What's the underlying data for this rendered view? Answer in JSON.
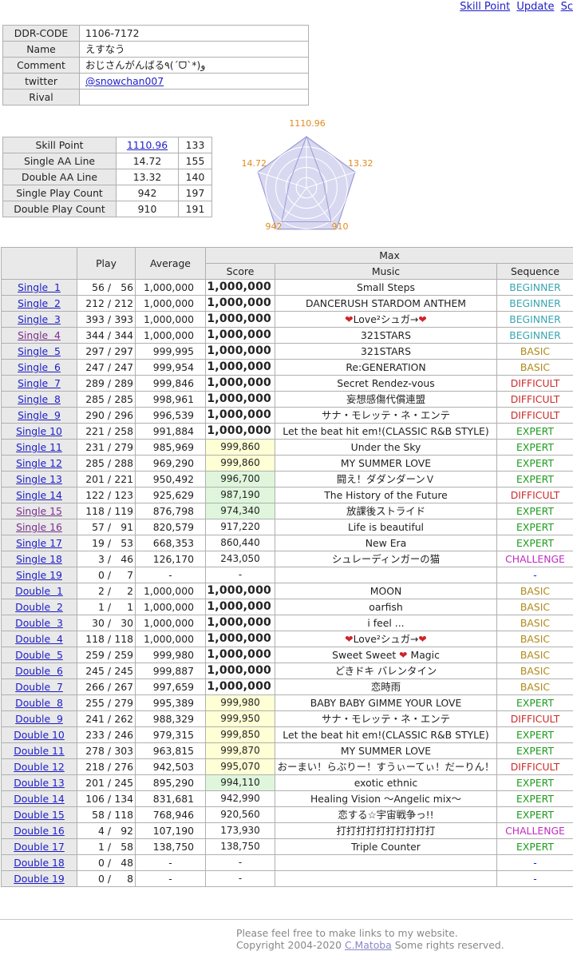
{
  "nav": {
    "skill_point": "Skill Point",
    "update": "Update",
    "extra": "Sc"
  },
  "profile": {
    "code_label": "DDR-CODE",
    "code": "1106-7172",
    "name_label": "Name",
    "name": "えすなう",
    "comment_label": "Comment",
    "comment": "おじさんがんばる٩(ˊᗜˋ*)و",
    "twitter_label": "twitter",
    "twitter": "@snowchan007",
    "rival_label": "Rival",
    "rival": ""
  },
  "skill": [
    {
      "label": "Skill Point",
      "value": "1110.96",
      "rank": "133",
      "link": true
    },
    {
      "label": "Single AA Line",
      "value": "14.72",
      "rank": "155"
    },
    {
      "label": "Double AA Line",
      "value": "13.32",
      "rank": "140"
    },
    {
      "label": "Single Play Count",
      "value": "942",
      "rank": "197"
    },
    {
      "label": "Double Play Count",
      "value": "910",
      "rank": "191"
    }
  ],
  "radar": {
    "values": [
      1110.96,
      13.32,
      910,
      942,
      14.72
    ],
    "labels": [
      "1110.96",
      "13.32",
      "910",
      "942",
      "14.72"
    ],
    "scale": [
      1,
      0.35,
      0.82,
      0.82,
      0.35
    ],
    "label_color": "#e08a1e",
    "fill": "#d8d8f0",
    "line": "#9a9ad8"
  },
  "colors": {
    "BEGINNER": "#3aa6b0",
    "BASIC": "#b08a18",
    "DIFFICULT": "#cc2a2a",
    "EXPERT": "#1d9a1d",
    "CHALLENGE": "#c02cc0",
    "-": "#1d1dc8"
  },
  "headers": {
    "play": "Play",
    "average": "Average",
    "max": "Max",
    "score": "Score",
    "music": "Music",
    "sequence": "Sequence"
  },
  "rows": [
    [
      "Single  1",
      "56",
      "56",
      "1,000,000",
      "1,000,000",
      "Small Steps",
      "BEGINNER"
    ],
    [
      "Single  2",
      "212",
      "212",
      "1,000,000",
      "1,000,000",
      "DANCERUSH STARDOM ANTHEM",
      "BEGINNER"
    ],
    [
      "Single  3",
      "393",
      "393",
      "1,000,000",
      "1,000,000",
      "❤️Love²シュガ→❤️",
      "BEGINNER"
    ],
    [
      "Single  4",
      "344",
      "344",
      "1,000,000",
      "1,000,000",
      "321STARS",
      "BEGINNER"
    ],
    [
      "Single  5",
      "297",
      "297",
      "999,995",
      "1,000,000",
      "321STARS",
      "BASIC"
    ],
    [
      "Single  6",
      "247",
      "247",
      "999,954",
      "1,000,000",
      "Re:GENERATION",
      "BASIC"
    ],
    [
      "Single  7",
      "289",
      "289",
      "999,846",
      "1,000,000",
      "Secret Rendez-vous",
      "DIFFICULT"
    ],
    [
      "Single  8",
      "285",
      "285",
      "998,961",
      "1,000,000",
      "妄想感傷代償連盟",
      "DIFFICULT"
    ],
    [
      "Single  9",
      "290",
      "296",
      "996,539",
      "1,000,000",
      "サナ・モレッテ・ネ・エンテ",
      "DIFFICULT"
    ],
    [
      "Single 10",
      "221",
      "258",
      "991,884",
      "1,000,000",
      "Let the beat hit em!(CLASSIC R&B STYLE)",
      "EXPERT"
    ],
    [
      "Single 11",
      "231",
      "279",
      "985,969",
      "999,860",
      "Under the Sky",
      "EXPERT"
    ],
    [
      "Single 12",
      "285",
      "288",
      "969,290",
      "999,860",
      "MY SUMMER LOVE",
      "EXPERT"
    ],
    [
      "Single 13",
      "201",
      "221",
      "950,492",
      "996,700",
      "闘え！ダダンダーンＶ",
      "EXPERT"
    ],
    [
      "Single 14",
      "122",
      "123",
      "925,629",
      "987,190",
      "The History of the Future",
      "DIFFICULT"
    ],
    [
      "Single 15",
      "118",
      "119",
      "876,798",
      "974,340",
      "放課後ストライド",
      "EXPERT"
    ],
    [
      "Single 16",
      "57",
      "91",
      "820,579",
      "917,220",
      "Life is beautiful",
      "EXPERT"
    ],
    [
      "Single 17",
      "19",
      "53",
      "668,353",
      "860,440",
      "New Era",
      "EXPERT"
    ],
    [
      "Single 18",
      "3",
      "46",
      "126,170",
      "243,050",
      "シュレーディンガーの猫",
      "CHALLENGE"
    ],
    [
      "Single 19",
      "0",
      "7",
      "-",
      "-",
      "",
      "-"
    ],
    [
      "Double  1",
      "2",
      "2",
      "1,000,000",
      "1,000,000",
      "MOON",
      "BASIC"
    ],
    [
      "Double  2",
      "1",
      "1",
      "1,000,000",
      "1,000,000",
      "oarfish",
      "BASIC"
    ],
    [
      "Double  3",
      "30",
      "30",
      "1,000,000",
      "1,000,000",
      "i feel ...",
      "BASIC"
    ],
    [
      "Double  4",
      "118",
      "118",
      "1,000,000",
      "1,000,000",
      "❤️Love²シュガ→❤️",
      "BASIC"
    ],
    [
      "Double  5",
      "259",
      "259",
      "999,980",
      "1,000,000",
      "Sweet Sweet ❤️ Magic",
      "BASIC"
    ],
    [
      "Double  6",
      "245",
      "245",
      "999,887",
      "1,000,000",
      "どきドキ バレンタイン",
      "BASIC"
    ],
    [
      "Double  7",
      "266",
      "267",
      "997,659",
      "1,000,000",
      "恋時雨",
      "BASIC"
    ],
    [
      "Double  8",
      "255",
      "279",
      "995,389",
      "999,980",
      "BABY BABY GIMME YOUR LOVE",
      "EXPERT"
    ],
    [
      "Double  9",
      "241",
      "262",
      "988,329",
      "999,950",
      "サナ・モレッテ・ネ・エンテ",
      "DIFFICULT"
    ],
    [
      "Double 10",
      "233",
      "246",
      "979,315",
      "999,850",
      "Let the beat hit em!(CLASSIC R&B STYLE)",
      "EXPERT"
    ],
    [
      "Double 11",
      "278",
      "303",
      "963,815",
      "999,870",
      "MY SUMMER LOVE",
      "EXPERT"
    ],
    [
      "Double 12",
      "218",
      "276",
      "942,503",
      "995,070",
      "おーまい！らぶりー！すうぃーてぃ！だーりん！",
      "DIFFICULT"
    ],
    [
      "Double 13",
      "201",
      "245",
      "895,290",
      "994,110",
      "exotic ethnic",
      "EXPERT"
    ],
    [
      "Double 14",
      "106",
      "134",
      "831,681",
      "942,990",
      "Healing Vision 〜Angelic mix〜",
      "EXPERT"
    ],
    [
      "Double 15",
      "58",
      "118",
      "768,946",
      "920,560",
      "恋する☆宇宙戦争っ!!",
      "EXPERT"
    ],
    [
      "Double 16",
      "4",
      "92",
      "107,190",
      "173,930",
      "打打打打打打打打打打",
      "CHALLENGE"
    ],
    [
      "Double 17",
      "1",
      "58",
      "138,750",
      "138,750",
      "Triple Counter",
      "EXPERT"
    ],
    [
      "Double 18",
      "0",
      "48",
      "-",
      "-",
      "",
      "-"
    ],
    [
      "Double 19",
      "0",
      "8",
      "-",
      "-",
      "",
      "-"
    ]
  ],
  "row_styles": [
    "max",
    "max",
    "max",
    "max",
    "max",
    "max",
    "max",
    "max",
    "max",
    "max",
    "y",
    "y",
    "g",
    "g",
    "g",
    "",
    "",
    "",
    "dash",
    "max",
    "max",
    "max",
    "max",
    "max",
    "max",
    "max",
    "y",
    "y",
    "y",
    "y",
    "y",
    "g",
    "",
    "",
    "",
    "",
    "dash",
    "dash"
  ],
  "visited_rows": [
    3,
    14,
    15
  ],
  "footer": {
    "line1": "Please feel free to make links to my website.",
    "line2_pre": "Copyright 2004-2020 ",
    "author": "C.Matoba",
    "line2_post": " Some rights reserved."
  }
}
